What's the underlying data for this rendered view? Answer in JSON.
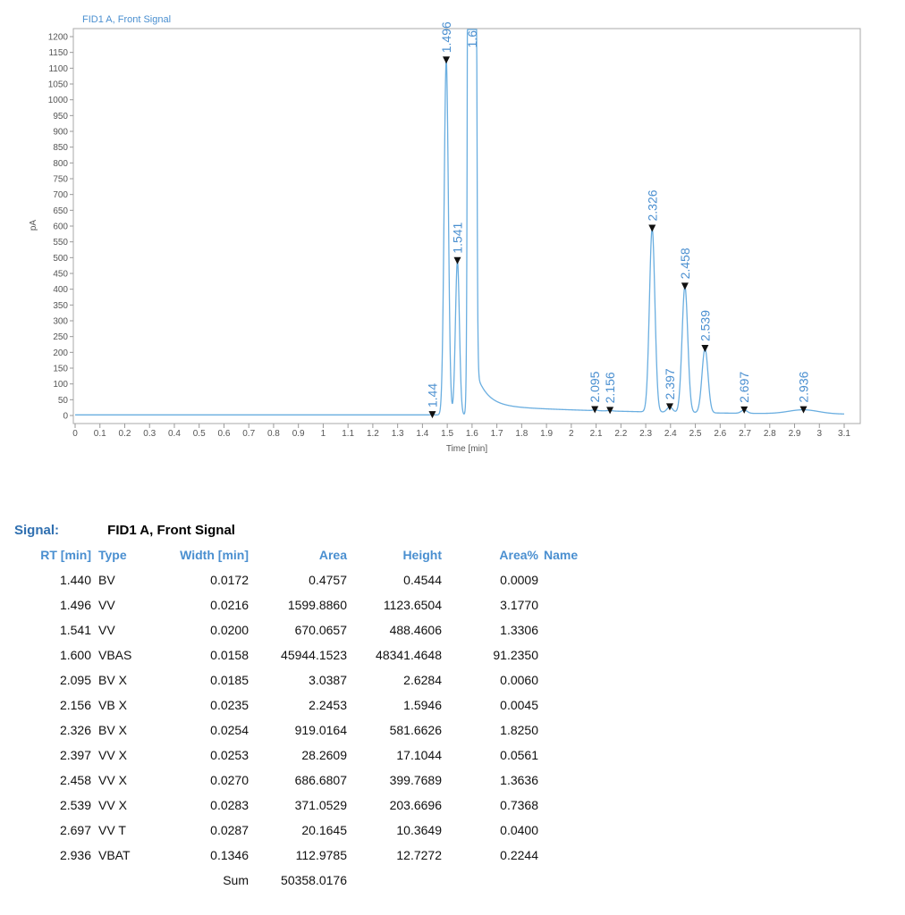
{
  "chart_data": {
    "type": "line",
    "title": "FID1 A, Front Signal",
    "xlabel": "Time [min]",
    "ylabel": "pA",
    "xlim": [
      0,
      3.1
    ],
    "ylim": [
      0,
      1200
    ],
    "x_ticks": [
      "0",
      "0.1",
      "0.2",
      "0.3",
      "0.4",
      "0.5",
      "0.6",
      "0.7",
      "0.8",
      "0.9",
      "1",
      "1.1",
      "1.2",
      "1.3",
      "1.4",
      "1.5",
      "1.6",
      "1.7",
      "1.8",
      "1.9",
      "2",
      "2.1",
      "2.2",
      "2.3",
      "2.4",
      "2.5",
      "2.6",
      "2.7",
      "2.8",
      "2.9",
      "3",
      "3.1"
    ],
    "y_ticks": [
      "0",
      "50",
      "100",
      "150",
      "200",
      "250",
      "300",
      "350",
      "400",
      "450",
      "500",
      "550",
      "600",
      "650",
      "700",
      "750",
      "800",
      "850",
      "900",
      "950",
      "1000",
      "1050",
      "1100",
      "1150",
      "1200"
    ],
    "baseline": 2,
    "peaks": [
      {
        "rt": 1.44,
        "height": 0.4544,
        "sigma": 0.005,
        "label": "1.44"
      },
      {
        "rt": 1.496,
        "height": 1123.6504,
        "sigma": 0.0085,
        "label": "1.496"
      },
      {
        "rt": 1.541,
        "height": 488.4606,
        "sigma": 0.008,
        "label": "1.541"
      },
      {
        "rt": 1.6,
        "height": 48341.4648,
        "sigma": 0.007,
        "label": "1.6"
      },
      {
        "rt": 2.095,
        "height": 2.6284,
        "sigma": 0.008,
        "label": "2.095"
      },
      {
        "rt": 2.156,
        "height": 1.5946,
        "sigma": 0.01,
        "label": "2.156"
      },
      {
        "rt": 2.326,
        "height": 581.6626,
        "sigma": 0.011,
        "label": "2.326"
      },
      {
        "rt": 2.397,
        "height": 17.1044,
        "sigma": 0.011,
        "label": "2.397"
      },
      {
        "rt": 2.458,
        "height": 399.7689,
        "sigma": 0.0115,
        "label": "2.458"
      },
      {
        "rt": 2.539,
        "height": 203.6696,
        "sigma": 0.012,
        "label": "2.539"
      },
      {
        "rt": 2.697,
        "height": 10.3649,
        "sigma": 0.012,
        "label": "2.697"
      },
      {
        "rt": 2.936,
        "height": 12.7272,
        "sigma": 0.06,
        "label": "2.936"
      }
    ],
    "tail_after_main_peak": {
      "start": 1.62,
      "amplitude": 95,
      "decay_min": 0.045,
      "floor": 30,
      "floor_decay_min": 0.6
    },
    "grid": false,
    "line_color": "#6aaee0",
    "marker_color": "#111111",
    "label_color": "#4a8fd0"
  },
  "report": {
    "signal_label": "Signal:",
    "signal_name": "FID1 A, Front Signal",
    "columns": [
      "RT [min]",
      "Type",
      "Width [min]",
      "Area",
      "Height",
      "Area%",
      "Name"
    ],
    "rows": [
      [
        "1.440",
        "BV",
        "0.0172",
        "0.4757",
        "0.4544",
        "0.0009",
        ""
      ],
      [
        "1.496",
        "VV",
        "0.0216",
        "1599.8860",
        "1123.6504",
        "3.1770",
        ""
      ],
      [
        "1.541",
        "VV",
        "0.0200",
        "670.0657",
        "488.4606",
        "1.3306",
        ""
      ],
      [
        "1.600",
        "VBAS",
        "0.0158",
        "45944.1523",
        "48341.4648",
        "91.2350",
        ""
      ],
      [
        "2.095",
        "BV X",
        "0.0185",
        "3.0387",
        "2.6284",
        "0.0060",
        ""
      ],
      [
        "2.156",
        "VB X",
        "0.0235",
        "2.2453",
        "1.5946",
        "0.0045",
        ""
      ],
      [
        "2.326",
        "BV X",
        "0.0254",
        "919.0164",
        "581.6626",
        "1.8250",
        ""
      ],
      [
        "2.397",
        "VV X",
        "0.0253",
        "28.2609",
        "17.1044",
        "0.0561",
        ""
      ],
      [
        "2.458",
        "VV X",
        "0.0270",
        "686.6807",
        "399.7689",
        "1.3636",
        ""
      ],
      [
        "2.539",
        "VV X",
        "0.0283",
        "371.0529",
        "203.6696",
        "0.7368",
        ""
      ],
      [
        "2.697",
        "VV T",
        "0.0287",
        "20.1645",
        "10.3649",
        "0.0400",
        ""
      ],
      [
        "2.936",
        "VBAT",
        "0.1346",
        "112.9785",
        "12.7272",
        "0.2244",
        ""
      ]
    ],
    "sum_label": "Sum",
    "sum_area": "50358.0176"
  }
}
